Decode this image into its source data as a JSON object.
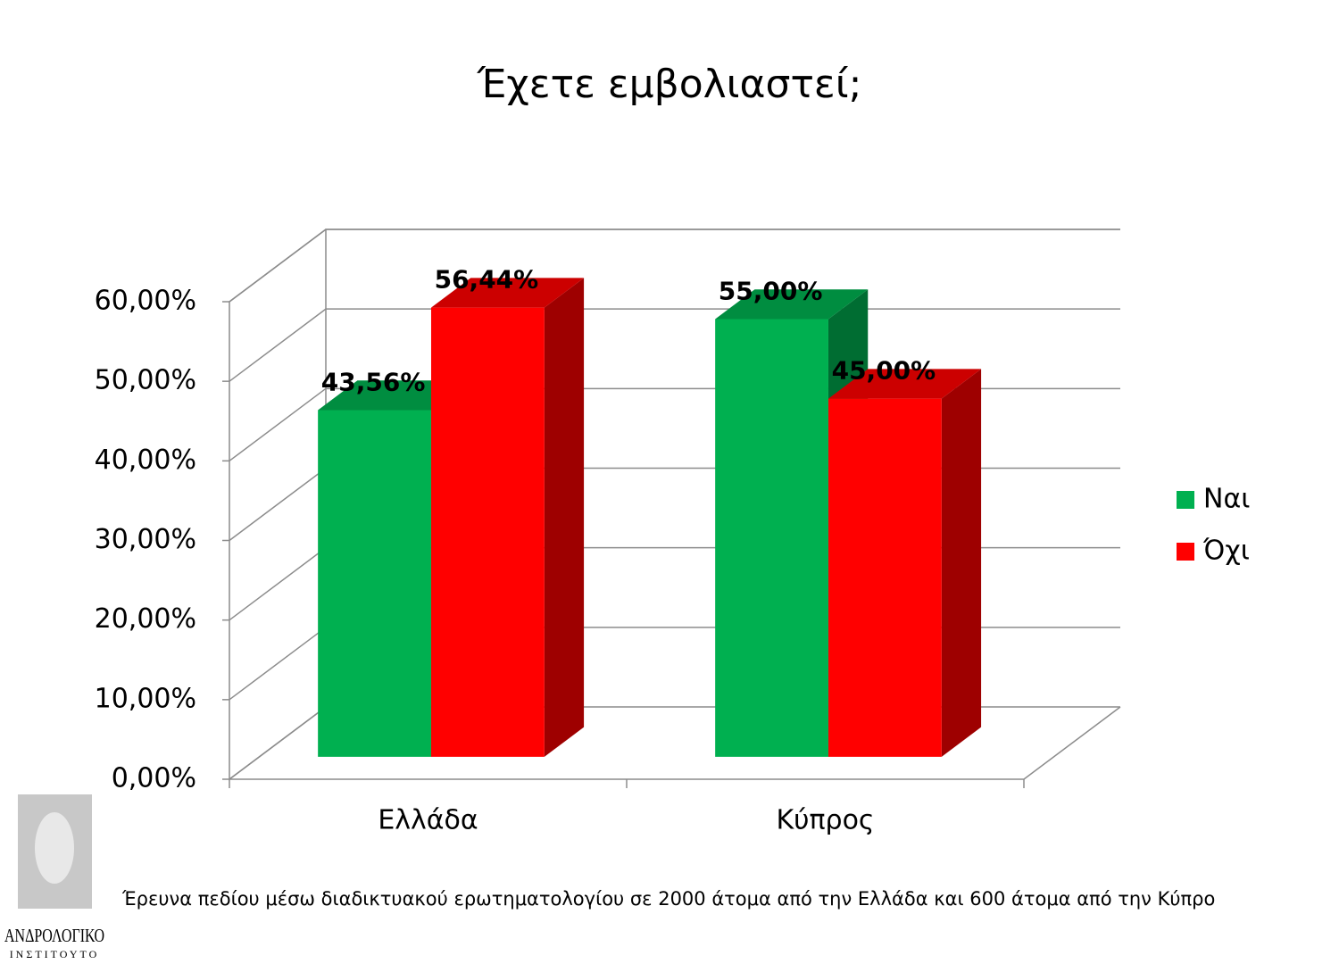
{
  "chart_data": {
    "type": "bar3d",
    "title": "Έχετε εμβολιαστεί;",
    "categories": [
      "Ελλάδα",
      "Κύπρος"
    ],
    "series": [
      {
        "name": "Ναι",
        "color": "#00b050",
        "values": [
          43.56,
          55
        ],
        "value_labels": [
          "43,56%",
          "55,00%"
        ]
      },
      {
        "name": "Όχι",
        "color": "#ff0000",
        "values": [
          56.44,
          45
        ],
        "value_labels": [
          "56,44%",
          "45,00%"
        ]
      }
    ],
    "ylim": [
      0,
      60
    ],
    "yticks": [
      {
        "value": 0,
        "label": "0,00%"
      },
      {
        "value": 10,
        "label": "10,00%"
      },
      {
        "value": 20,
        "label": "20,00%"
      },
      {
        "value": 30,
        "label": "30,00%"
      },
      {
        "value": 40,
        "label": "40,00%"
      },
      {
        "value": 50,
        "label": "50,00%"
      },
      {
        "value": 60,
        "label": "60,00%"
      }
    ],
    "grid": true,
    "legend": "right"
  },
  "footnote": "Έρευνα πεδίου μέσω διαδικτυακού ερωτηματολογίου σε 2000 άτομα από την Ελλάδα και 600 άτομα από την Κύπρο",
  "logo": {
    "name": "ΑΝΔΡΟΛΟΓΙΚΟ",
    "subtitle": "ΙΝΣΤΙΤΟΥΤΟ"
  }
}
